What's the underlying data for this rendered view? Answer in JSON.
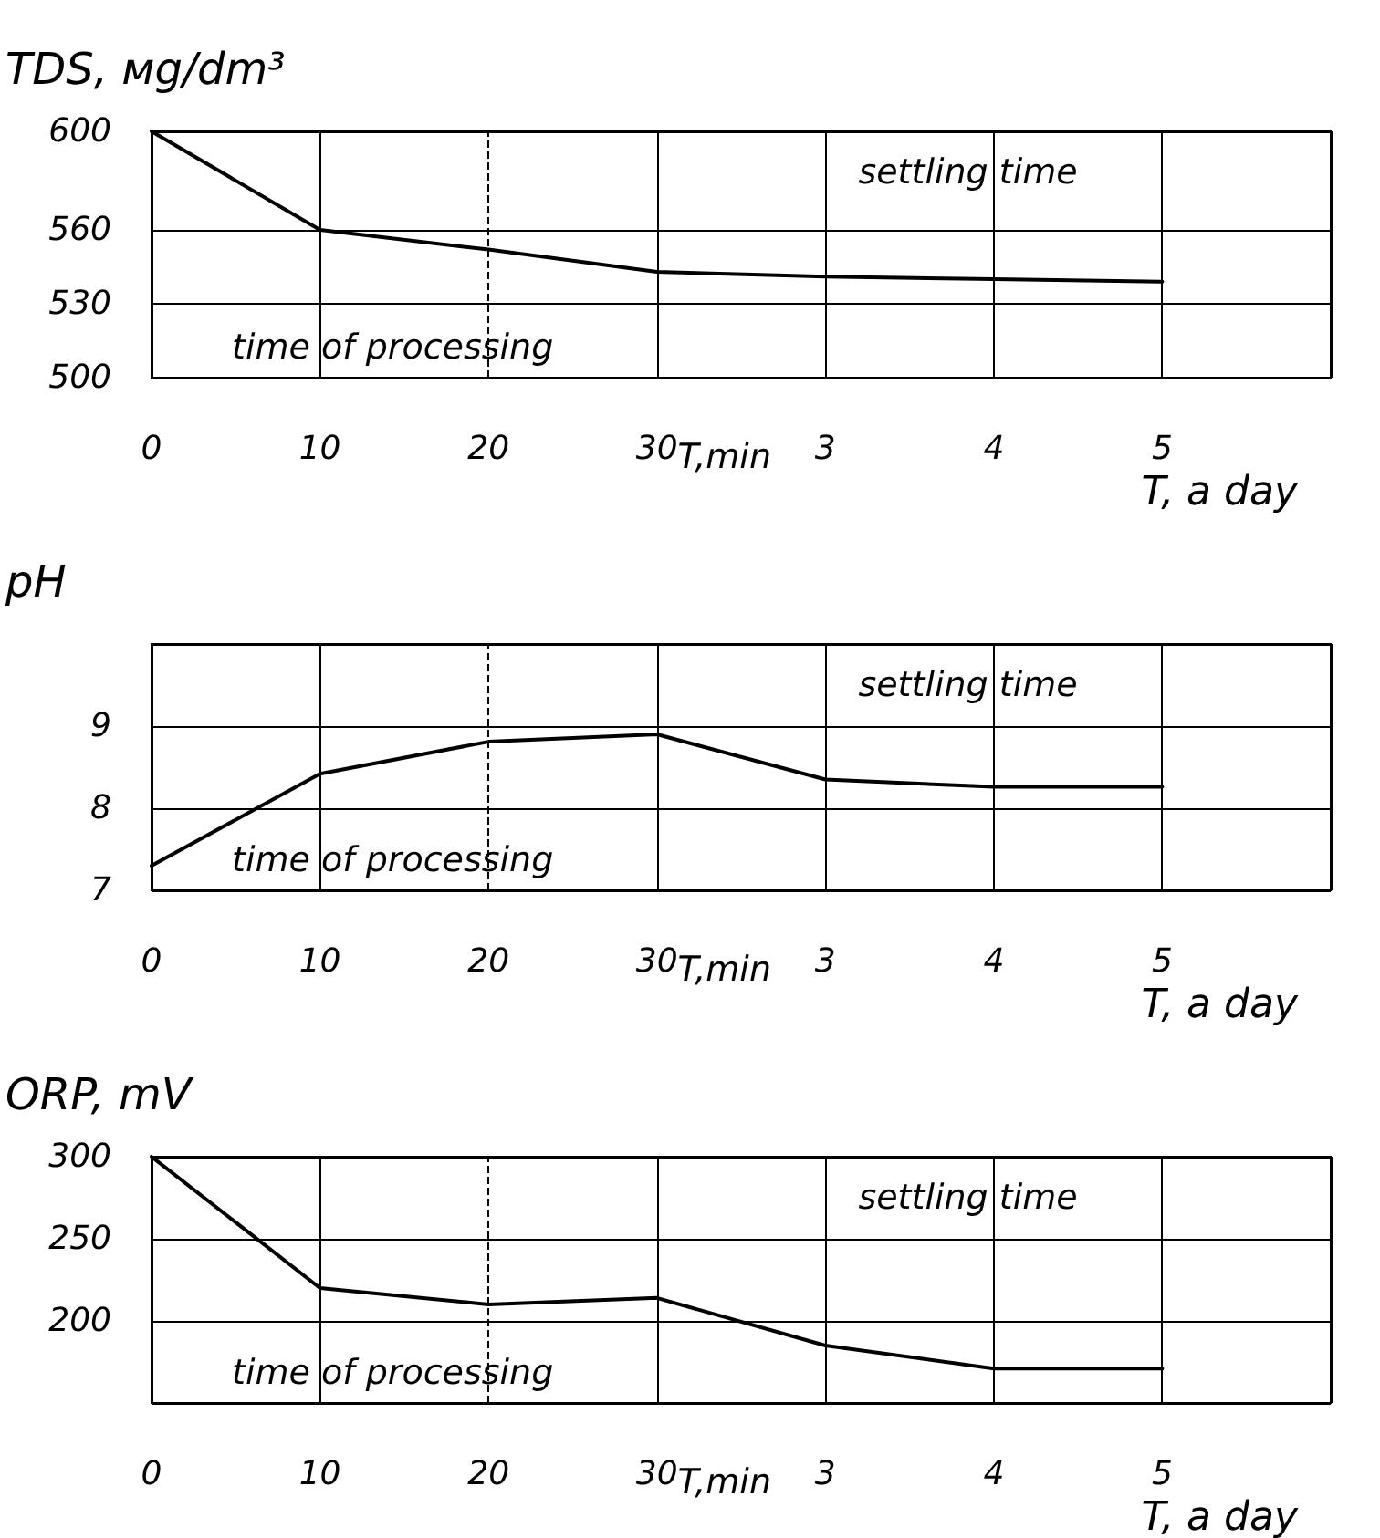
{
  "chart_data": [
    {
      "type": "line",
      "ylabel": "TDS, мg/dm³",
      "xlabel": "T, a day",
      "categories": [
        "0",
        "10",
        "20",
        "30",
        "3",
        "4",
        "5",
        null
      ],
      "values": [
        600,
        560,
        552,
        543,
        541,
        540,
        539,
        null
      ],
      "color": "#000000",
      "marker": "none",
      "line_style": "solid",
      "ylim": [
        500,
        600
      ],
      "yticks": [
        500,
        530,
        560,
        600
      ],
      "grid": true,
      "ref_lines": [
        {
          "axis": "x",
          "value": "20",
          "line_style": "dashed"
        }
      ],
      "annotations": [
        "time of processing",
        "settling time",
        "T,min"
      ]
    },
    {
      "type": "line",
      "ylabel": "pH",
      "xlabel": "T, a day",
      "categories": [
        "0",
        "10",
        "20",
        "30",
        "3",
        "4",
        "5",
        null
      ],
      "values": [
        7.3,
        8.42,
        8.81,
        8.9,
        8.35,
        8.26,
        8.26,
        null
      ],
      "color": "#000000",
      "marker": "none",
      "line_style": "solid",
      "ylim": [
        7,
        10
      ],
      "yticks": [
        7,
        8,
        9,
        {
          "value": 10,
          "label": null
        }
      ],
      "grid": true,
      "ref_lines": [
        {
          "axis": "x",
          "value": "20",
          "line_style": "dashed"
        }
      ],
      "annotations": [
        "time of processing",
        "settling time",
        "T,min"
      ]
    },
    {
      "type": "line",
      "ylabel": "ORP, mV",
      "xlabel": "T, a day",
      "categories": [
        "0",
        "10",
        "20",
        "30",
        "3",
        "4",
        "5",
        null
      ],
      "values": [
        300,
        220,
        210,
        214,
        185,
        171,
        171,
        null
      ],
      "color": "#000000",
      "marker": "none",
      "line_style": "solid",
      "ylim": [
        150,
        300
      ],
      "yticks": [
        {
          "value": 150,
          "label": null
        },
        200,
        250,
        300
      ],
      "grid": true,
      "ref_lines": [
        {
          "axis": "x",
          "value": "20",
          "line_style": "dashed"
        }
      ],
      "annotations": [
        "time of processing",
        "settling time",
        "T,min"
      ]
    }
  ]
}
